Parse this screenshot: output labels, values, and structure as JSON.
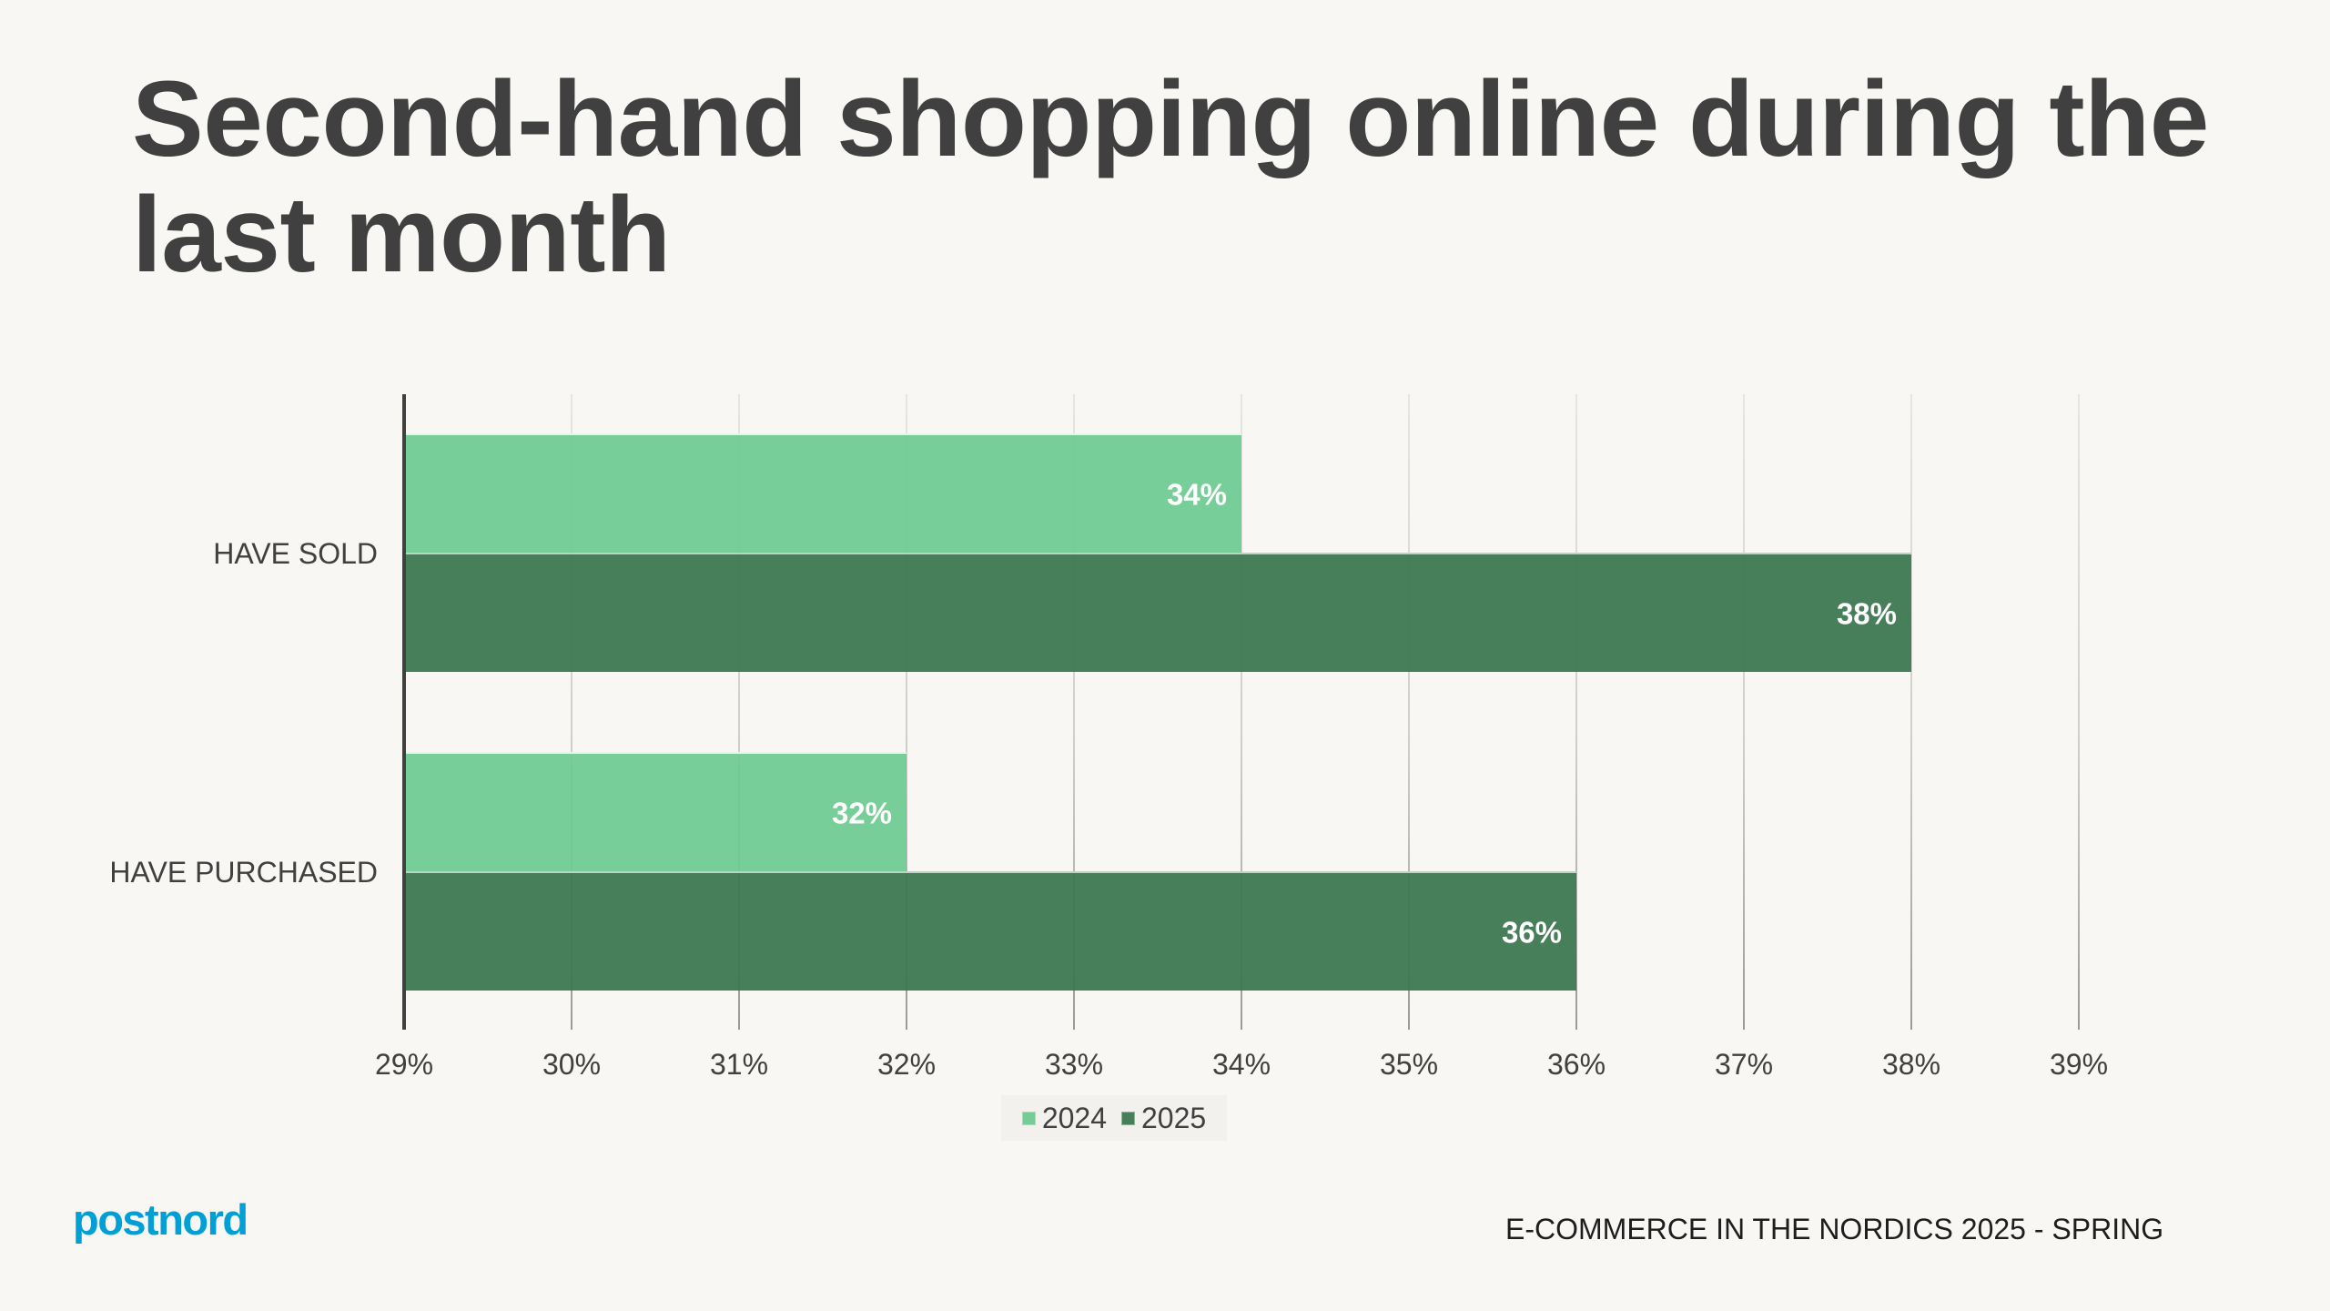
{
  "title": "Second-hand shopping online during the last month",
  "chart_data": {
    "type": "bar",
    "orientation": "horizontal",
    "title": "Second-hand shopping online during the last month",
    "categories": [
      "HAVE SOLD",
      "HAVE PURCHASED"
    ],
    "series": [
      {
        "name": "2024",
        "color": "#76CC96",
        "values": [
          34,
          32
        ],
        "labels": [
          "34%",
          "32%"
        ]
      },
      {
        "name": "2025",
        "color": "#477F5A",
        "values": [
          38,
          36
        ],
        "labels": [
          "38%",
          "36%"
        ]
      }
    ],
    "xlabel": "",
    "ylabel": "",
    "xlim": [
      29,
      39
    ],
    "x_ticks": [
      "29%",
      "30%",
      "31%",
      "32%",
      "33%",
      "34%",
      "35%",
      "36%",
      "37%",
      "38%",
      "39%"
    ],
    "grid": true,
    "legend_position": "bottom",
    "unit": "%"
  },
  "legend": {
    "items": [
      {
        "label": "2024",
        "color": "#76CC96"
      },
      {
        "label": "2025",
        "color": "#477F5A"
      }
    ]
  },
  "footer": {
    "logo": "postnord",
    "logo_color": "#00A0D6",
    "report": "E-COMMERCE IN THE NORDICS 2025 - SPRING"
  },
  "colors": {
    "background": "#F8F7F4",
    "text": "#404040",
    "bar_2024": "#76CC96",
    "bar_2025": "#477F5A"
  }
}
